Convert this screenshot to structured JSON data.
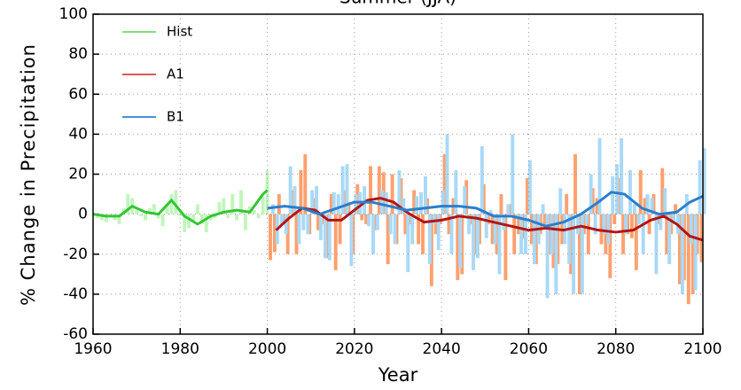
{
  "chart_data": {
    "type": "bar-trend",
    "title": "Summer (JJA)",
    "xlabel": "Year",
    "ylabel": "% Change in Precipitation",
    "xlim": [
      1960,
      2100
    ],
    "xticks": [
      1960,
      1980,
      2000,
      2020,
      2040,
      2060,
      2080,
      2100
    ],
    "ylim": [
      -60,
      100
    ],
    "yticks": [
      -60,
      -40,
      -20,
      0,
      20,
      40,
      60,
      80,
      100
    ],
    "grid": true,
    "legend": "upper left",
    "series": [
      {
        "name": "Hist",
        "color": "#33c633",
        "legend_color": "#7fe07f",
        "bar_color": "#c2f5bc",
        "x": [
          1961,
          1962,
          1963,
          1964,
          1965,
          1966,
          1967,
          1968,
          1969,
          1970,
          1971,
          1972,
          1973,
          1974,
          1975,
          1976,
          1977,
          1978,
          1979,
          1980,
          1981,
          1982,
          1983,
          1984,
          1985,
          1986,
          1987,
          1988,
          1989,
          1990,
          1991,
          1992,
          1993,
          1994,
          1995,
          1996,
          1997,
          1998,
          1999,
          2000
        ],
        "values": [
          -2,
          -3,
          -4,
          -1,
          -3,
          -5,
          3,
          10,
          8,
          2,
          -1,
          -3,
          3,
          5,
          -2,
          -6,
          5,
          10,
          12,
          -1,
          -9,
          -7,
          -4,
          5,
          -5,
          -9,
          -3,
          -2,
          6,
          8,
          -2,
          10,
          -3,
          12,
          -8,
          4,
          2,
          -2,
          9,
          22
        ],
        "trend_x": [
          1960,
          1963,
          1966,
          1969,
          1972,
          1975,
          1978,
          1981,
          1984,
          1987,
          1990,
          1993,
          1996,
          1999,
          2000
        ],
        "trend": [
          0,
          -1,
          -1,
          4,
          1,
          0,
          7,
          -1,
          -5,
          -1,
          1,
          2,
          1,
          10,
          12
        ]
      },
      {
        "name": "A1",
        "color": "#b31414",
        "legend_color": "#e05555",
        "bar_color": "#ffa06e",
        "x": [
          2001,
          2002,
          2003,
          2004,
          2005,
          2006,
          2007,
          2008,
          2009,
          2010,
          2011,
          2012,
          2013,
          2014,
          2015,
          2016,
          2017,
          2018,
          2019,
          2020,
          2021,
          2022,
          2023,
          2024,
          2025,
          2026,
          2027,
          2028,
          2029,
          2030,
          2031,
          2032,
          2033,
          2034,
          2035,
          2036,
          2037,
          2038,
          2039,
          2040,
          2041,
          2042,
          2043,
          2044,
          2045,
          2046,
          2047,
          2048,
          2049,
          2050,
          2051,
          2052,
          2053,
          2054,
          2055,
          2056,
          2057,
          2058,
          2059,
          2060,
          2061,
          2062,
          2063,
          2064,
          2065,
          2066,
          2067,
          2068,
          2069,
          2070,
          2071,
          2072,
          2073,
          2074,
          2075,
          2076,
          2077,
          2078,
          2079,
          2080,
          2081,
          2082,
          2083,
          2084,
          2085,
          2086,
          2087,
          2088,
          2089,
          2090,
          2091,
          2092,
          2093,
          2094,
          2095,
          2096,
          2097,
          2098,
          2099,
          2100
        ],
        "values": [
          -23,
          -19,
          10,
          -5,
          -20,
          12,
          -20,
          22,
          30,
          -10,
          8,
          -8,
          -5,
          -22,
          10,
          -28,
          -15,
          12,
          6,
          -20,
          15,
          -3,
          -5,
          24,
          -8,
          24,
          21,
          -25,
          20,
          -15,
          18,
          -10,
          -5,
          12,
          -15,
          -20,
          8,
          -36,
          -10,
          -5,
          30,
          -10,
          8,
          -33,
          -30,
          17,
          -5,
          -20,
          -15,
          15,
          -5,
          -15,
          -20,
          10,
          -33,
          5,
          -20,
          -10,
          -12,
          18,
          -15,
          -25,
          -10,
          -5,
          -20,
          -27,
          -25,
          -15,
          10,
          -30,
          30,
          -40,
          -10,
          -20,
          13,
          8,
          -15,
          -20,
          -32,
          -5,
          18,
          -20,
          -10,
          -12,
          -28,
          22,
          8,
          -10,
          10,
          -5,
          23,
          -20,
          -10,
          5,
          -35,
          -33,
          -45,
          -40,
          -20,
          -24
        ],
        "trend_x": [
          2002,
          2005,
          2008,
          2011,
          2014,
          2017,
          2020,
          2023,
          2026,
          2029,
          2032,
          2036,
          2040,
          2044,
          2048,
          2052,
          2056,
          2060,
          2064,
          2068,
          2072,
          2076,
          2080,
          2084,
          2088,
          2091,
          2094,
          2097,
          2100
        ],
        "trend": [
          -8,
          -2,
          3,
          2,
          -3,
          -3,
          2,
          7,
          8,
          6,
          1,
          -4,
          -3,
          -1,
          -2,
          -4,
          -6,
          -8,
          -7,
          -8,
          -6,
          -8,
          -9,
          -8,
          -3,
          -1,
          -5,
          -11,
          -13
        ]
      },
      {
        "name": "B1",
        "color": "#2a7ecc",
        "legend_color": "#4a8fd8",
        "bar_color": "#a9d9f7",
        "x": [
          2001,
          2002,
          2003,
          2004,
          2005,
          2006,
          2007,
          2008,
          2009,
          2010,
          2011,
          2012,
          2013,
          2014,
          2015,
          2016,
          2017,
          2018,
          2019,
          2020,
          2021,
          2022,
          2023,
          2024,
          2025,
          2026,
          2027,
          2028,
          2029,
          2030,
          2031,
          2032,
          2033,
          2034,
          2035,
          2036,
          2037,
          2038,
          2039,
          2040,
          2041,
          2042,
          2043,
          2044,
          2045,
          2046,
          2047,
          2048,
          2049,
          2050,
          2051,
          2052,
          2053,
          2054,
          2055,
          2056,
          2057,
          2058,
          2059,
          2060,
          2061,
          2062,
          2063,
          2064,
          2065,
          2066,
          2067,
          2068,
          2069,
          2070,
          2071,
          2072,
          2073,
          2074,
          2075,
          2076,
          2077,
          2078,
          2079,
          2080,
          2081,
          2082,
          2083,
          2084,
          2085,
          2086,
          2087,
          2088,
          2089,
          2090,
          2091,
          2092,
          2093,
          2094,
          2095,
          2096,
          2097,
          2098,
          2099,
          2100
        ],
        "values": [
          5,
          -15,
          -5,
          -10,
          24,
          14,
          -15,
          -8,
          -10,
          12,
          14,
          -13,
          -22,
          -23,
          11,
          10,
          24,
          25,
          -26,
          10,
          11,
          14,
          -6,
          -20,
          -8,
          12,
          11,
          -10,
          -15,
          22,
          8,
          -29,
          -15,
          9,
          11,
          19,
          -25,
          -5,
          -18,
          12,
          40,
          -20,
          22,
          -27,
          14,
          -10,
          -28,
          -22,
          34,
          -12,
          2,
          -15,
          -30,
          -8,
          5,
          40,
          -2,
          -20,
          -20,
          27,
          -25,
          -15,
          5,
          -42,
          -20,
          -40,
          13,
          -15,
          -25,
          -40,
          -10,
          -40,
          -5,
          20,
          -10,
          38,
          -10,
          -15,
          19,
          25,
          38,
          -10,
          22,
          5,
          -5,
          -20,
          10,
          8,
          -30,
          -8,
          13,
          -25,
          -5,
          -10,
          -40,
          10,
          -15,
          -38,
          27,
          33
        ],
        "trend_x": [
          2000,
          2004,
          2008,
          2012,
          2016,
          2020,
          2024,
          2028,
          2032,
          2036,
          2040,
          2044,
          2048,
          2052,
          2056,
          2060,
          2064,
          2068,
          2072,
          2076,
          2079,
          2082,
          2086,
          2090,
          2094,
          2097,
          2100
        ],
        "trend": [
          3,
          4,
          3,
          0,
          3,
          6,
          6,
          4,
          2,
          3,
          4,
          4,
          3,
          -1,
          -1,
          -3,
          -6,
          -4,
          0,
          6,
          11,
          10,
          3,
          0,
          1,
          6,
          9
        ]
      }
    ]
  }
}
